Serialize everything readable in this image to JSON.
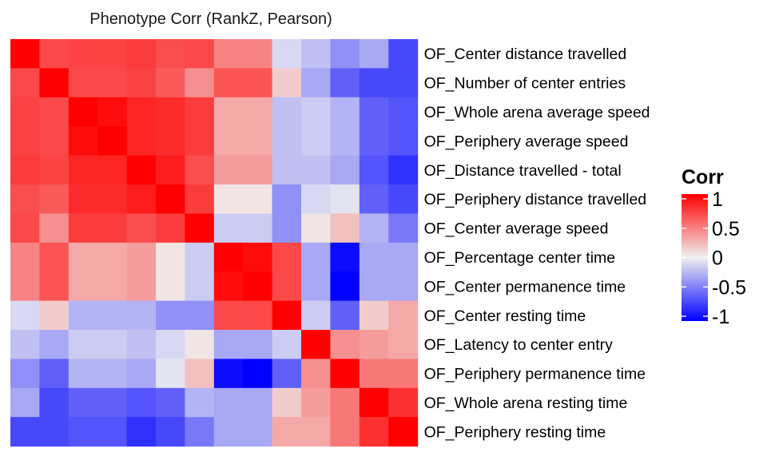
{
  "chart_data": {
    "type": "heatmap",
    "title": "Phenotype Corr (RankZ, Pearson)",
    "row_labels": [
      "OF_Center distance travelled",
      "OF_Number of center entries",
      "OF_Whole arena average speed",
      "OF_Periphery average speed",
      "OF_Distance travelled - total",
      "OF_Periphery distance travelled",
      "OF_Center average speed",
      "OF_Percentage center time",
      "OF_Center permanence time",
      "OF_Center resting time",
      "OF_Latency to center entry",
      "OF_Periphery permanence time",
      "OF_Whole arena resting time",
      "OF_Periphery resting time"
    ],
    "matrix": [
      [
        1.0,
        0.7,
        0.72,
        0.72,
        0.75,
        0.68,
        0.7,
        0.45,
        0.45,
        -0.1,
        -0.2,
        -0.4,
        -0.3,
        -0.7
      ],
      [
        0.7,
        1.0,
        0.7,
        0.7,
        0.72,
        0.62,
        0.4,
        0.65,
        0.65,
        0.15,
        -0.3,
        -0.6,
        -0.7,
        -0.7
      ],
      [
        0.72,
        0.7,
        1.0,
        0.95,
        0.85,
        0.82,
        0.75,
        0.3,
        0.3,
        -0.2,
        -0.15,
        -0.25,
        -0.6,
        -0.65
      ],
      [
        0.72,
        0.7,
        0.95,
        1.0,
        0.85,
        0.82,
        0.75,
        0.3,
        0.3,
        -0.2,
        -0.15,
        -0.25,
        -0.6,
        -0.65
      ],
      [
        0.75,
        0.72,
        0.85,
        0.85,
        1.0,
        0.88,
        0.68,
        0.35,
        0.35,
        -0.2,
        -0.2,
        -0.3,
        -0.65,
        -0.8
      ],
      [
        0.68,
        0.62,
        0.82,
        0.82,
        0.88,
        1.0,
        0.75,
        0.05,
        0.05,
        -0.4,
        -0.1,
        -0.05,
        -0.6,
        -0.7
      ],
      [
        0.7,
        0.4,
        0.75,
        0.75,
        0.68,
        0.75,
        1.0,
        -0.15,
        -0.15,
        -0.4,
        0.05,
        0.2,
        -0.25,
        -0.5
      ],
      [
        0.45,
        0.65,
        0.3,
        0.3,
        0.35,
        0.05,
        -0.15,
        1.0,
        0.95,
        0.7,
        -0.3,
        -0.95,
        -0.3,
        -0.3
      ],
      [
        0.45,
        0.65,
        0.3,
        0.3,
        0.35,
        0.05,
        -0.15,
        0.95,
        1.0,
        0.7,
        -0.3,
        -1.0,
        -0.3,
        -0.3
      ],
      [
        -0.1,
        0.15,
        -0.25,
        -0.25,
        -0.25,
        -0.4,
        -0.4,
        0.7,
        0.7,
        1.0,
        -0.15,
        -0.6,
        0.15,
        0.3
      ],
      [
        -0.2,
        -0.3,
        -0.15,
        -0.15,
        -0.2,
        -0.1,
        0.05,
        -0.3,
        -0.3,
        -0.15,
        1.0,
        0.4,
        0.35,
        0.3
      ],
      [
        -0.4,
        -0.6,
        -0.25,
        -0.25,
        -0.3,
        -0.05,
        0.2,
        -0.95,
        -1.0,
        -0.6,
        0.4,
        1.0,
        0.5,
        0.5
      ],
      [
        -0.3,
        -0.7,
        -0.6,
        -0.6,
        -0.65,
        -0.6,
        -0.25,
        -0.3,
        -0.3,
        0.15,
        0.35,
        0.5,
        1.0,
        0.8
      ],
      [
        -0.7,
        -0.7,
        -0.65,
        -0.65,
        -0.8,
        -0.7,
        -0.5,
        -0.3,
        -0.3,
        0.3,
        0.3,
        0.5,
        0.8,
        1.0
      ]
    ],
    "color_scale": {
      "low": "#0000ff",
      "mid": "#f0f0f0",
      "high": "#ff0000",
      "limits": [
        -1,
        1
      ]
    },
    "legend": {
      "title": "Corr",
      "placement": "right",
      "ticks": [
        1,
        0.5,
        0,
        -0.5,
        -1
      ],
      "tick_labels": [
        "1",
        "0.5",
        "0",
        "-0.5",
        "-1"
      ]
    }
  }
}
